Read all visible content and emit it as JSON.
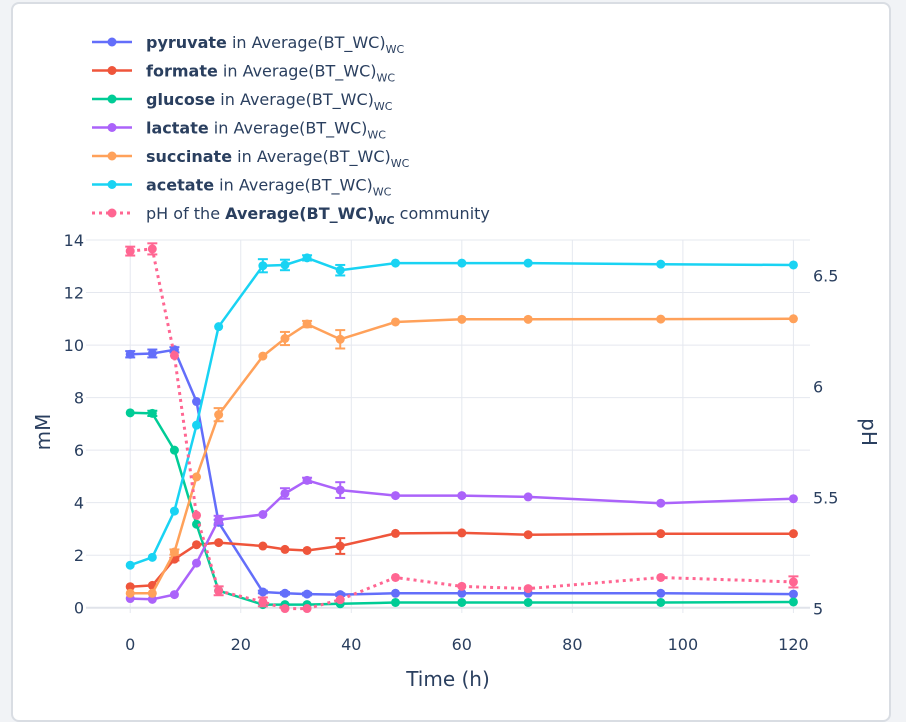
{
  "chart_data": {
    "type": "line",
    "xlabel": "Time (h)",
    "ylabel": "mM",
    "y2label": "pH",
    "xlim": [
      -8,
      123
    ],
    "ylim": [
      -0.2,
      14
    ],
    "y2lim": [
      4.98,
      6.66
    ],
    "x_ticks": [
      0,
      20,
      40,
      60,
      80,
      100,
      120
    ],
    "y_ticks": [
      0,
      2,
      4,
      6,
      8,
      10,
      12,
      14
    ],
    "y2_ticks": [
      5,
      5.5,
      6,
      6.5
    ],
    "legend_position": "top-left",
    "series": [
      {
        "name": "pyruvate",
        "legend_suffix": " in Average(BT_WC)",
        "legend_sub": "WC",
        "color": "#636efa",
        "axis": "y",
        "dash": false,
        "x": [
          0,
          4,
          8,
          12,
          16,
          24,
          28,
          32,
          38,
          48,
          60,
          72,
          96,
          120
        ],
        "y": [
          9.65,
          9.68,
          9.82,
          7.85,
          3.25,
          0.6,
          0.55,
          0.52,
          0.5,
          0.55,
          0.55,
          0.55,
          0.55,
          0.52
        ],
        "err": [
          0.12,
          0.15,
          0.1,
          0,
          0.1,
          0.05,
          0.05,
          0.05,
          0.05,
          0,
          0,
          0,
          0,
          0
        ]
      },
      {
        "name": "formate",
        "legend_suffix": " in Average(BT_WC)",
        "legend_sub": "WC",
        "color": "#ef553b",
        "axis": "y",
        "dash": false,
        "x": [
          0,
          4,
          8,
          12,
          16,
          24,
          28,
          32,
          38,
          48,
          60,
          72,
          96,
          120
        ],
        "y": [
          0.8,
          0.85,
          1.85,
          2.4,
          2.48,
          2.35,
          2.22,
          2.18,
          2.35,
          2.83,
          2.85,
          2.78,
          2.82,
          2.82
        ],
        "err": [
          0,
          0,
          0.05,
          0,
          0,
          0,
          0,
          0,
          0.3,
          0,
          0,
          0,
          0,
          0
        ]
      },
      {
        "name": "glucose",
        "legend_suffix": " in Average(BT_WC)",
        "legend_sub": "WC",
        "color": "#00cc96",
        "axis": "y",
        "dash": false,
        "x": [
          0,
          4,
          8,
          12,
          16,
          24,
          28,
          32,
          38,
          48,
          60,
          72,
          96,
          120
        ],
        "y": [
          7.42,
          7.4,
          6.0,
          3.18,
          0.65,
          0.12,
          0.12,
          0.12,
          0.15,
          0.2,
          0.2,
          0.2,
          0.2,
          0.22
        ],
        "err": [
          0,
          0.1,
          0,
          0,
          0,
          0,
          0,
          0,
          0,
          0,
          0,
          0,
          0,
          0
        ]
      },
      {
        "name": "lactate",
        "legend_suffix": " in Average(BT_WC)",
        "legend_sub": "WC",
        "color": "#ab63fa",
        "axis": "y",
        "dash": false,
        "x": [
          0,
          4,
          8,
          12,
          16,
          24,
          28,
          32,
          38,
          48,
          60,
          72,
          96,
          120
        ],
        "y": [
          0.35,
          0.32,
          0.5,
          1.7,
          3.35,
          3.55,
          4.35,
          4.85,
          4.48,
          4.27,
          4.27,
          4.22,
          3.98,
          4.15
        ],
        "err": [
          0,
          0,
          0,
          0,
          0.15,
          0,
          0.2,
          0.1,
          0.3,
          0,
          0,
          0,
          0,
          0
        ]
      },
      {
        "name": "succinate",
        "legend_suffix": " in Average(BT_WC)",
        "legend_sub": "WC",
        "color": "#ffa15a",
        "axis": "y",
        "dash": false,
        "x": [
          0,
          4,
          8,
          12,
          16,
          24,
          28,
          32,
          38,
          48,
          60,
          72,
          96,
          120
        ],
        "y": [
          0.55,
          0.55,
          2.12,
          4.98,
          7.35,
          9.58,
          10.25,
          10.8,
          10.22,
          10.88,
          10.98,
          10.98,
          10.99,
          11.0
        ],
        "err": [
          0,
          0,
          0.1,
          0,
          0.25,
          0,
          0.25,
          0.12,
          0.35,
          0,
          0,
          0,
          0,
          0
        ]
      },
      {
        "name": "acetate",
        "legend_suffix": " in Average(BT_WC)",
        "legend_sub": "WC",
        "color": "#19d3f3",
        "axis": "y",
        "dash": false,
        "x": [
          0,
          4,
          8,
          12,
          16,
          24,
          28,
          32,
          38,
          48,
          60,
          72,
          96,
          120
        ],
        "y": [
          1.62,
          1.92,
          3.68,
          6.95,
          10.7,
          13.02,
          13.05,
          13.32,
          12.85,
          13.12,
          13.12,
          13.12,
          13.08,
          13.05
        ],
        "err": [
          0,
          0,
          0,
          0,
          0,
          0.25,
          0.2,
          0.1,
          0.2,
          0,
          0,
          0,
          0,
          0
        ]
      },
      {
        "name": "pH",
        "legend_prefix": "pH of the ",
        "legend_bold": "Average(BT_WC)",
        "legend_sub": "WC",
        "legend_suffix": " community",
        "color": "#ff6692",
        "axis": "y2",
        "dash": true,
        "x": [
          0,
          4,
          8,
          12,
          16,
          24,
          28,
          32,
          38,
          48,
          60,
          72,
          96,
          120
        ],
        "y": [
          6.61,
          6.62,
          6.14,
          5.42,
          5.08,
          5.03,
          5.0,
          5.0,
          5.04,
          5.14,
          5.1,
          5.09,
          5.14,
          5.12
        ],
        "err": [
          0.02,
          0.025,
          0,
          0,
          0.02,
          0.02,
          0,
          0,
          0,
          0,
          0,
          0,
          0,
          0.025
        ]
      }
    ]
  }
}
